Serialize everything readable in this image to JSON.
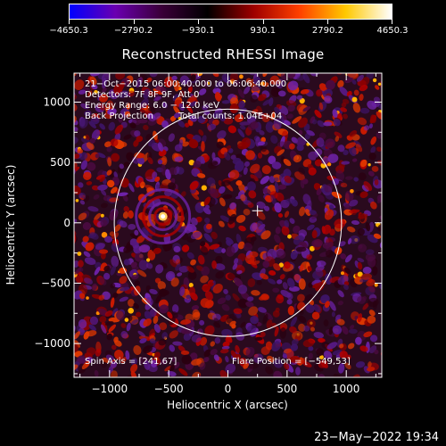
{
  "colorbar": {
    "ticks": [
      "−4650.3",
      "−2790.2",
      "−930.1",
      "930.1",
      "2790.2",
      "4650.3"
    ],
    "tick_values": [
      -4650.3,
      -2790.2,
      -930.1,
      930.1,
      2790.2,
      4650.3
    ],
    "range": [
      -4650.3,
      4650.3
    ],
    "colors": [
      "#0000ff",
      "#6a00b0",
      "#3a0038",
      "#000000",
      "#9e0000",
      "#ff4000",
      "#ffc800",
      "#ffffff"
    ]
  },
  "chart_data": {
    "type": "heatmap",
    "title": "Reconstructed RHESSI Image",
    "xlabel": "Heliocentric X (arcsec)",
    "ylabel": "Heliocentric Y (arcsec)",
    "xlim": [
      -1300,
      1300
    ],
    "ylim": [
      -1280,
      1240
    ],
    "x_ticks": [
      -1000,
      -500,
      0,
      500,
      1000
    ],
    "y_ticks": [
      1000,
      500,
      0,
      -500,
      -1000
    ],
    "x_tick_labels": [
      "−1000",
      "−500",
      "0",
      "500",
      "1000"
    ],
    "y_tick_labels": [
      "1000",
      "500",
      "0",
      "−500",
      "−1000"
    ],
    "solar_limb_radius": 960,
    "sun_center_marker": [
      250,
      100
    ],
    "bright_source": [
      -549,
      53
    ],
    "annotations": {
      "time": "21−Oct−2015 06:00:40.000 to 06:06:40.000",
      "detectors": "Detectors: 7F 8F 9F, Att 0",
      "energy": "Energy Range: 6.0 − 12.0 keV",
      "method": "Back Projection",
      "counts": "Total counts: 1.04E+04",
      "spin_axis": "Spin Axis = [241,67]",
      "flare_position": "Flare Position = [−549,53]"
    }
  },
  "footer": {
    "date": "23−May−2022 19:34"
  }
}
